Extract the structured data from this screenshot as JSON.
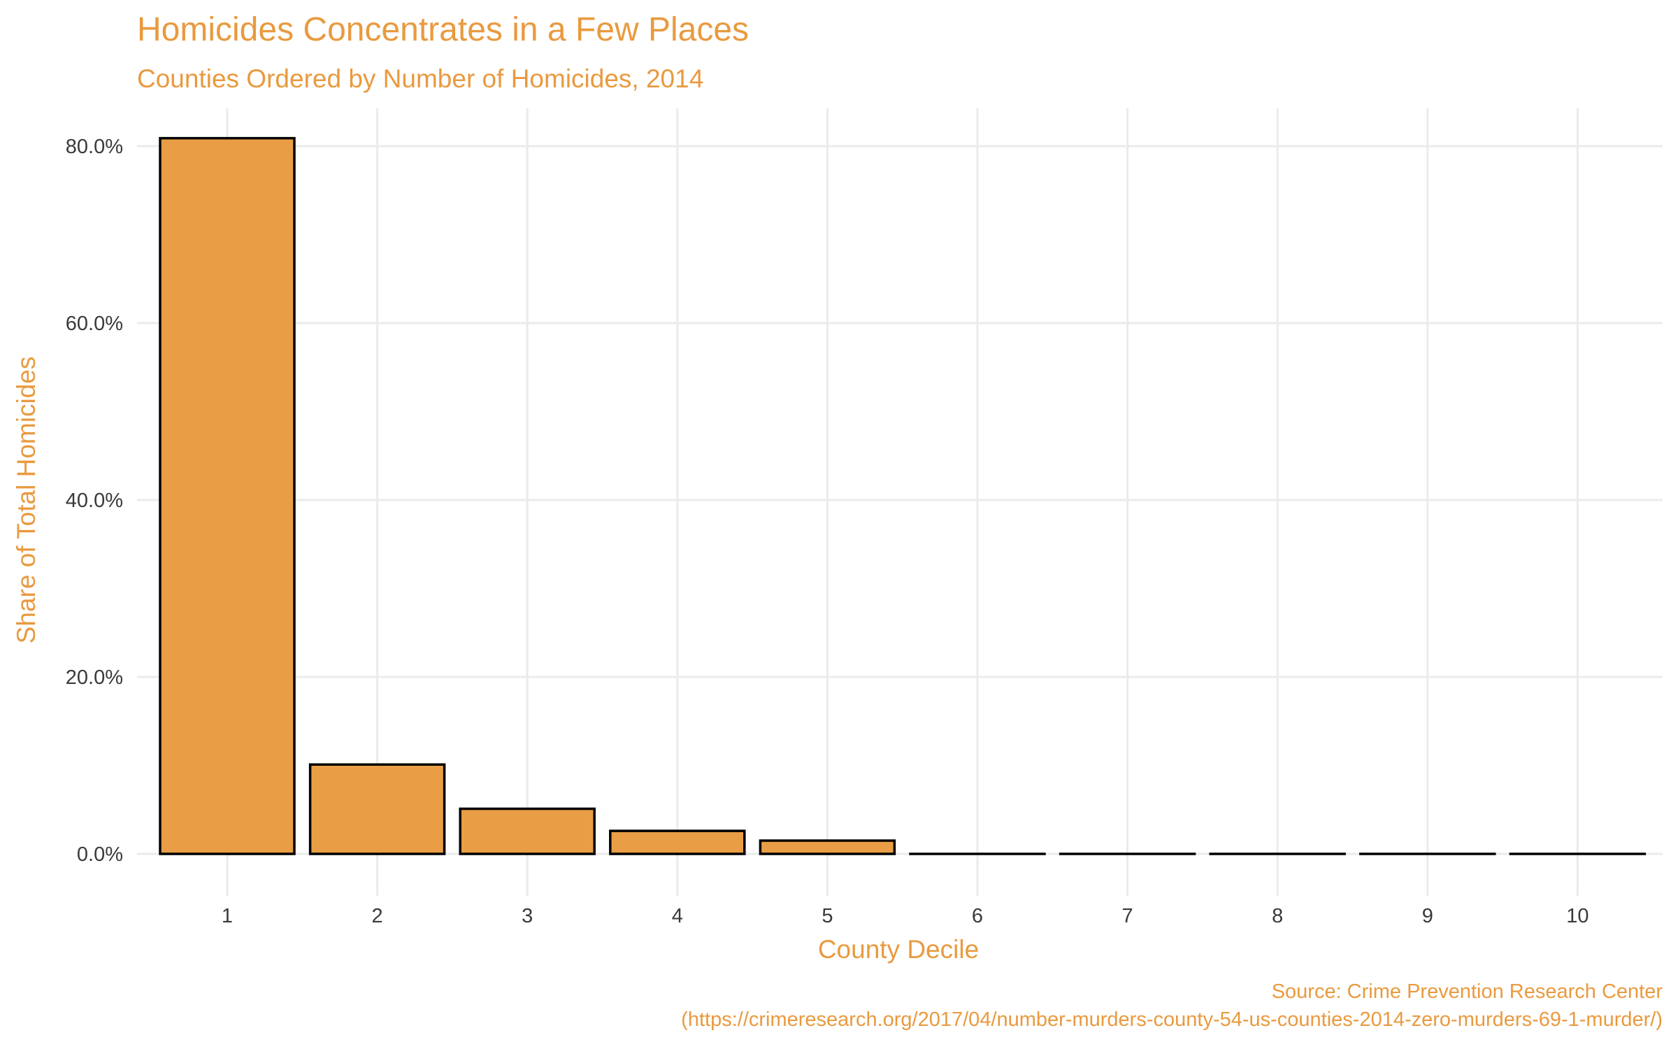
{
  "chart_data": {
    "type": "bar",
    "title": "Homicides Concentrates in a Few Places",
    "subtitle": "Counties Ordered by Number of Homicides, 2014",
    "xlabel": "County Decile",
    "ylabel": "Share of Total Homicides",
    "categories": [
      "1",
      "2",
      "3",
      "4",
      "5",
      "6",
      "7",
      "8",
      "9",
      "10"
    ],
    "values": [
      80.9,
      10.1,
      5.1,
      2.6,
      1.5,
      0.0,
      0.0,
      0.0,
      0.0,
      0.0
    ],
    "ylim": [
      -3.5,
      81.0
    ],
    "yticks": [
      0,
      20,
      40,
      60,
      80
    ],
    "ytick_labels": [
      "0.0%",
      "20.0%",
      "40.0%",
      "60.0%",
      "80.0%"
    ],
    "grid": true,
    "legend": "none",
    "colors": {
      "bar_fill": "#E99E45",
      "bar_outline": "#000000",
      "text_accent": "#E99A3F",
      "grid": "#EBEBEB"
    },
    "caption": {
      "line1": "Source: Crime Prevention Research Center",
      "line2": "(https://crimeresearch.org/2017/04/number-murders-county-54-us-counties-2014-zero-murders-69-1-murder/)"
    }
  }
}
